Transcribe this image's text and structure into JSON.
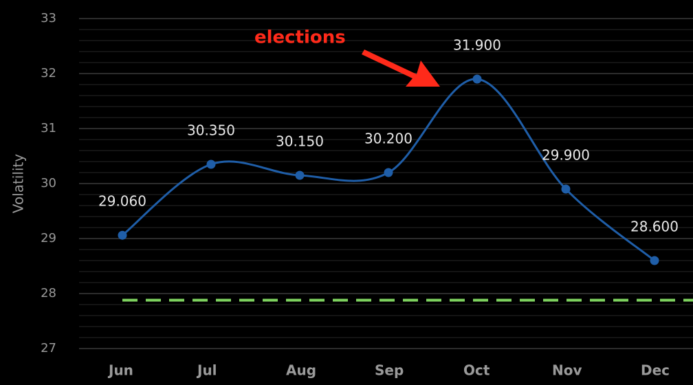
{
  "chart_data": {
    "type": "line",
    "y_label": "Volatility",
    "categories": [
      "Jun",
      "Jul",
      "Aug",
      "Sep",
      "Oct",
      "Nov",
      "Dec"
    ],
    "series": [
      {
        "name": "Volatility",
        "color": "#1f5ea8",
        "values": [
          29.06,
          30.35,
          30.15,
          30.2,
          31.9,
          29.9,
          28.6
        ],
        "value_labels": [
          "29.060",
          "30.350",
          "30.150",
          "30.200",
          "31.900",
          "29.900",
          "28.600"
        ]
      }
    ],
    "ylim": [
      27,
      33
    ],
    "yticks": [
      27,
      28,
      29,
      30,
      31,
      32,
      33
    ],
    "grid": true,
    "grid_minor_divisions": 5,
    "reference_line": {
      "value": 27.88,
      "color": "#7ed35f"
    },
    "annotation": {
      "text": "elections",
      "color": "#ff2a1a"
    }
  }
}
